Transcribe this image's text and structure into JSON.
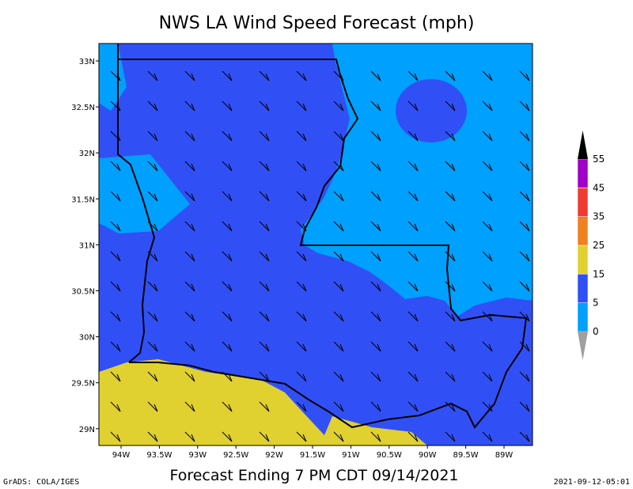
{
  "title": "NWS LA Wind Speed Forecast (mph)",
  "footer": "Forecast Ending 7 PM CDT 09/14/2021",
  "credit": "GrADS: COLA/IGES",
  "timestamp": "2021-09-12-05:01",
  "map": {
    "lat_labels": [
      "33N",
      "32.5N",
      "32N",
      "31.5N",
      "31N",
      "30.5N",
      "30N",
      "29.5N",
      "29N"
    ],
    "lon_labels": [
      "94W",
      "93.5W",
      "93W",
      "92.5W",
      "92W",
      "91.5W",
      "91W",
      "90.5W",
      "90W",
      "89.5W",
      "89W"
    ]
  },
  "legend": {
    "levels": [
      0,
      5,
      15,
      25,
      35,
      45,
      55
    ],
    "colors": [
      "#a0a0a0",
      "#00a0ff",
      "#3050f5",
      "#e0d030",
      "#f08020",
      "#f03c30",
      "#a000c8",
      "#000000"
    ]
  }
}
